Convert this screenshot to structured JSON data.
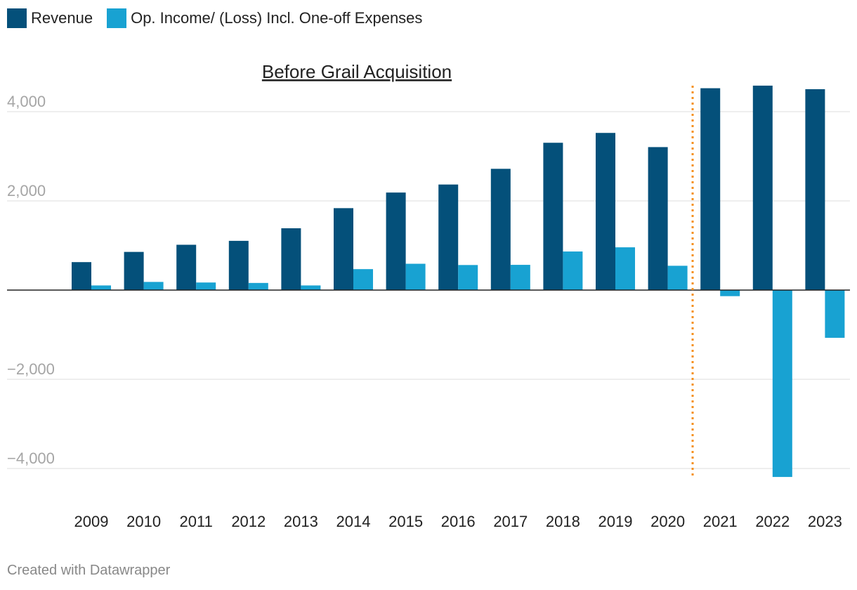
{
  "legend": {
    "revenue_label": "Revenue",
    "op_income_label": "Op. Income/ (Loss) Incl. One-off Expenses"
  },
  "annotation": {
    "label": "Before Grail Acquisition",
    "divider_after_year": "2020"
  },
  "footer": {
    "credit": "Created with Datawrapper"
  },
  "colors": {
    "revenue": "#04507a",
    "op_income": "#18a2d2",
    "divider": "#f5901e",
    "gridline": "#dddddd",
    "tick_text": "#a5a5a5",
    "zero_line": "#222222"
  },
  "chart_data": {
    "type": "bar",
    "title": "",
    "xlabel": "",
    "ylabel": "",
    "ylim": [
      -4200,
      4550
    ],
    "y_ticks": [
      4000,
      2000,
      0,
      -2000,
      -4000
    ],
    "y_tick_labels": [
      "4,000",
      "2,000",
      "",
      "−2,000",
      "−4,000"
    ],
    "categories": [
      "2009",
      "2010",
      "2011",
      "2012",
      "2013",
      "2014",
      "2015",
      "2016",
      "2017",
      "2018",
      "2019",
      "2020",
      "2021",
      "2022",
      "2023"
    ],
    "series": [
      {
        "name": "Revenue",
        "values": [
          627,
          856,
          1016,
          1104,
          1386,
          1837,
          2187,
          2367,
          2719,
          3303,
          3524,
          3206,
          4526,
          4584,
          4504
        ]
      },
      {
        "name": "Op. Income/ (Loss) Incl. One-off Expenses",
        "values": [
          104,
          183,
          170,
          160,
          104,
          470,
          590,
          562,
          566,
          865,
          959,
          545,
          -136,
          -4190,
          -1070
        ]
      }
    ]
  }
}
